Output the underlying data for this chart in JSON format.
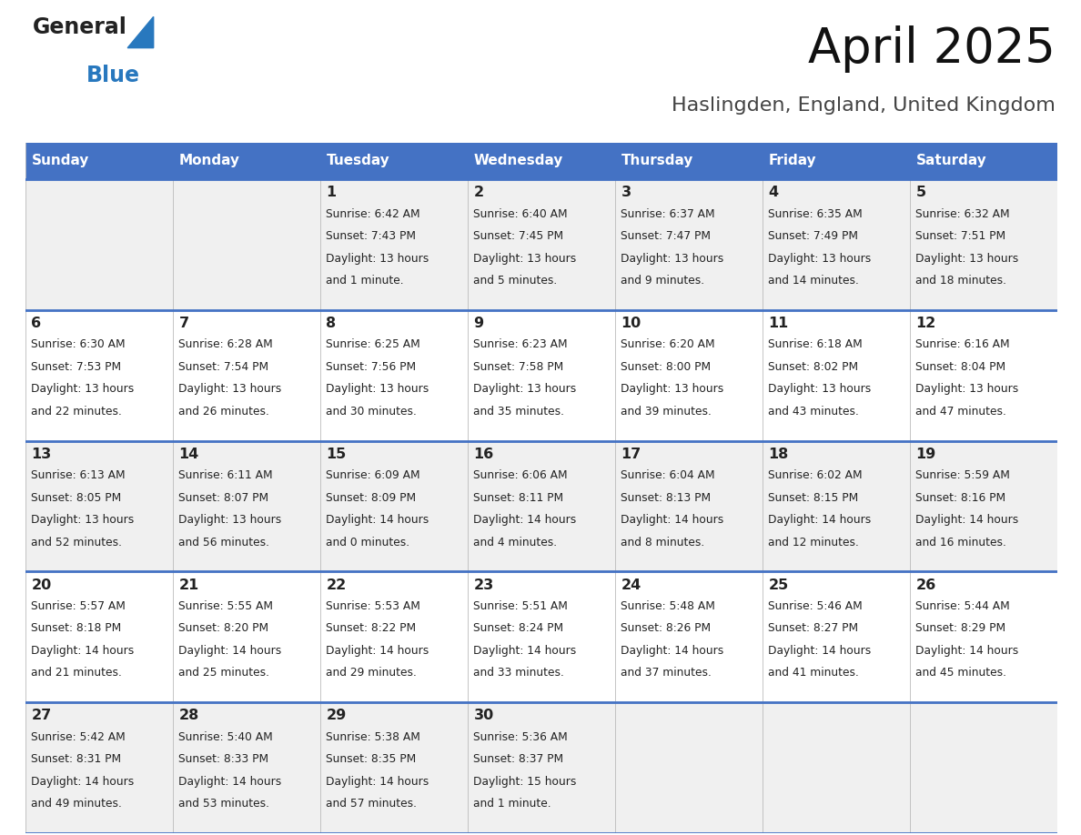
{
  "title": "April 2025",
  "subtitle": "Haslingden, England, United Kingdom",
  "days_of_week": [
    "Sunday",
    "Monday",
    "Tuesday",
    "Wednesday",
    "Thursday",
    "Friday",
    "Saturday"
  ],
  "header_bg": "#4472C4",
  "header_text": "#FFFFFF",
  "row_bg_even": "#F0F0F0",
  "row_bg_odd": "#FFFFFF",
  "border_color": "#4472C4",
  "text_color": "#222222",
  "title_color": "#111111",
  "subtitle_color": "#444444",
  "calendar_data": [
    [
      {
        "day": "",
        "sunrise": "",
        "sunset": "",
        "daylight": ""
      },
      {
        "day": "",
        "sunrise": "",
        "sunset": "",
        "daylight": ""
      },
      {
        "day": "1",
        "sunrise": "Sunrise: 6:42 AM",
        "sunset": "Sunset: 7:43 PM",
        "daylight": "Daylight: 13 hours\nand 1 minute."
      },
      {
        "day": "2",
        "sunrise": "Sunrise: 6:40 AM",
        "sunset": "Sunset: 7:45 PM",
        "daylight": "Daylight: 13 hours\nand 5 minutes."
      },
      {
        "day": "3",
        "sunrise": "Sunrise: 6:37 AM",
        "sunset": "Sunset: 7:47 PM",
        "daylight": "Daylight: 13 hours\nand 9 minutes."
      },
      {
        "day": "4",
        "sunrise": "Sunrise: 6:35 AM",
        "sunset": "Sunset: 7:49 PM",
        "daylight": "Daylight: 13 hours\nand 14 minutes."
      },
      {
        "day": "5",
        "sunrise": "Sunrise: 6:32 AM",
        "sunset": "Sunset: 7:51 PM",
        "daylight": "Daylight: 13 hours\nand 18 minutes."
      }
    ],
    [
      {
        "day": "6",
        "sunrise": "Sunrise: 6:30 AM",
        "sunset": "Sunset: 7:53 PM",
        "daylight": "Daylight: 13 hours\nand 22 minutes."
      },
      {
        "day": "7",
        "sunrise": "Sunrise: 6:28 AM",
        "sunset": "Sunset: 7:54 PM",
        "daylight": "Daylight: 13 hours\nand 26 minutes."
      },
      {
        "day": "8",
        "sunrise": "Sunrise: 6:25 AM",
        "sunset": "Sunset: 7:56 PM",
        "daylight": "Daylight: 13 hours\nand 30 minutes."
      },
      {
        "day": "9",
        "sunrise": "Sunrise: 6:23 AM",
        "sunset": "Sunset: 7:58 PM",
        "daylight": "Daylight: 13 hours\nand 35 minutes."
      },
      {
        "day": "10",
        "sunrise": "Sunrise: 6:20 AM",
        "sunset": "Sunset: 8:00 PM",
        "daylight": "Daylight: 13 hours\nand 39 minutes."
      },
      {
        "day": "11",
        "sunrise": "Sunrise: 6:18 AM",
        "sunset": "Sunset: 8:02 PM",
        "daylight": "Daylight: 13 hours\nand 43 minutes."
      },
      {
        "day": "12",
        "sunrise": "Sunrise: 6:16 AM",
        "sunset": "Sunset: 8:04 PM",
        "daylight": "Daylight: 13 hours\nand 47 minutes."
      }
    ],
    [
      {
        "day": "13",
        "sunrise": "Sunrise: 6:13 AM",
        "sunset": "Sunset: 8:05 PM",
        "daylight": "Daylight: 13 hours\nand 52 minutes."
      },
      {
        "day": "14",
        "sunrise": "Sunrise: 6:11 AM",
        "sunset": "Sunset: 8:07 PM",
        "daylight": "Daylight: 13 hours\nand 56 minutes."
      },
      {
        "day": "15",
        "sunrise": "Sunrise: 6:09 AM",
        "sunset": "Sunset: 8:09 PM",
        "daylight": "Daylight: 14 hours\nand 0 minutes."
      },
      {
        "day": "16",
        "sunrise": "Sunrise: 6:06 AM",
        "sunset": "Sunset: 8:11 PM",
        "daylight": "Daylight: 14 hours\nand 4 minutes."
      },
      {
        "day": "17",
        "sunrise": "Sunrise: 6:04 AM",
        "sunset": "Sunset: 8:13 PM",
        "daylight": "Daylight: 14 hours\nand 8 minutes."
      },
      {
        "day": "18",
        "sunrise": "Sunrise: 6:02 AM",
        "sunset": "Sunset: 8:15 PM",
        "daylight": "Daylight: 14 hours\nand 12 minutes."
      },
      {
        "day": "19",
        "sunrise": "Sunrise: 5:59 AM",
        "sunset": "Sunset: 8:16 PM",
        "daylight": "Daylight: 14 hours\nand 16 minutes."
      }
    ],
    [
      {
        "day": "20",
        "sunrise": "Sunrise: 5:57 AM",
        "sunset": "Sunset: 8:18 PM",
        "daylight": "Daylight: 14 hours\nand 21 minutes."
      },
      {
        "day": "21",
        "sunrise": "Sunrise: 5:55 AM",
        "sunset": "Sunset: 8:20 PM",
        "daylight": "Daylight: 14 hours\nand 25 minutes."
      },
      {
        "day": "22",
        "sunrise": "Sunrise: 5:53 AM",
        "sunset": "Sunset: 8:22 PM",
        "daylight": "Daylight: 14 hours\nand 29 minutes."
      },
      {
        "day": "23",
        "sunrise": "Sunrise: 5:51 AM",
        "sunset": "Sunset: 8:24 PM",
        "daylight": "Daylight: 14 hours\nand 33 minutes."
      },
      {
        "day": "24",
        "sunrise": "Sunrise: 5:48 AM",
        "sunset": "Sunset: 8:26 PM",
        "daylight": "Daylight: 14 hours\nand 37 minutes."
      },
      {
        "day": "25",
        "sunrise": "Sunrise: 5:46 AM",
        "sunset": "Sunset: 8:27 PM",
        "daylight": "Daylight: 14 hours\nand 41 minutes."
      },
      {
        "day": "26",
        "sunrise": "Sunrise: 5:44 AM",
        "sunset": "Sunset: 8:29 PM",
        "daylight": "Daylight: 14 hours\nand 45 minutes."
      }
    ],
    [
      {
        "day": "27",
        "sunrise": "Sunrise: 5:42 AM",
        "sunset": "Sunset: 8:31 PM",
        "daylight": "Daylight: 14 hours\nand 49 minutes."
      },
      {
        "day": "28",
        "sunrise": "Sunrise: 5:40 AM",
        "sunset": "Sunset: 8:33 PM",
        "daylight": "Daylight: 14 hours\nand 53 minutes."
      },
      {
        "day": "29",
        "sunrise": "Sunrise: 5:38 AM",
        "sunset": "Sunset: 8:35 PM",
        "daylight": "Daylight: 14 hours\nand 57 minutes."
      },
      {
        "day": "30",
        "sunrise": "Sunrise: 5:36 AM",
        "sunset": "Sunset: 8:37 PM",
        "daylight": "Daylight: 15 hours\nand 1 minute."
      },
      {
        "day": "",
        "sunrise": "",
        "sunset": "",
        "daylight": ""
      },
      {
        "day": "",
        "sunrise": "",
        "sunset": "",
        "daylight": ""
      },
      {
        "day": "",
        "sunrise": "",
        "sunset": "",
        "daylight": ""
      }
    ]
  ],
  "logo_color_general": "#222222",
  "logo_color_blue": "#2878BE",
  "logo_triangle_color": "#2878BE",
  "fig_width": 11.88,
  "fig_height": 9.18,
  "dpi": 100
}
